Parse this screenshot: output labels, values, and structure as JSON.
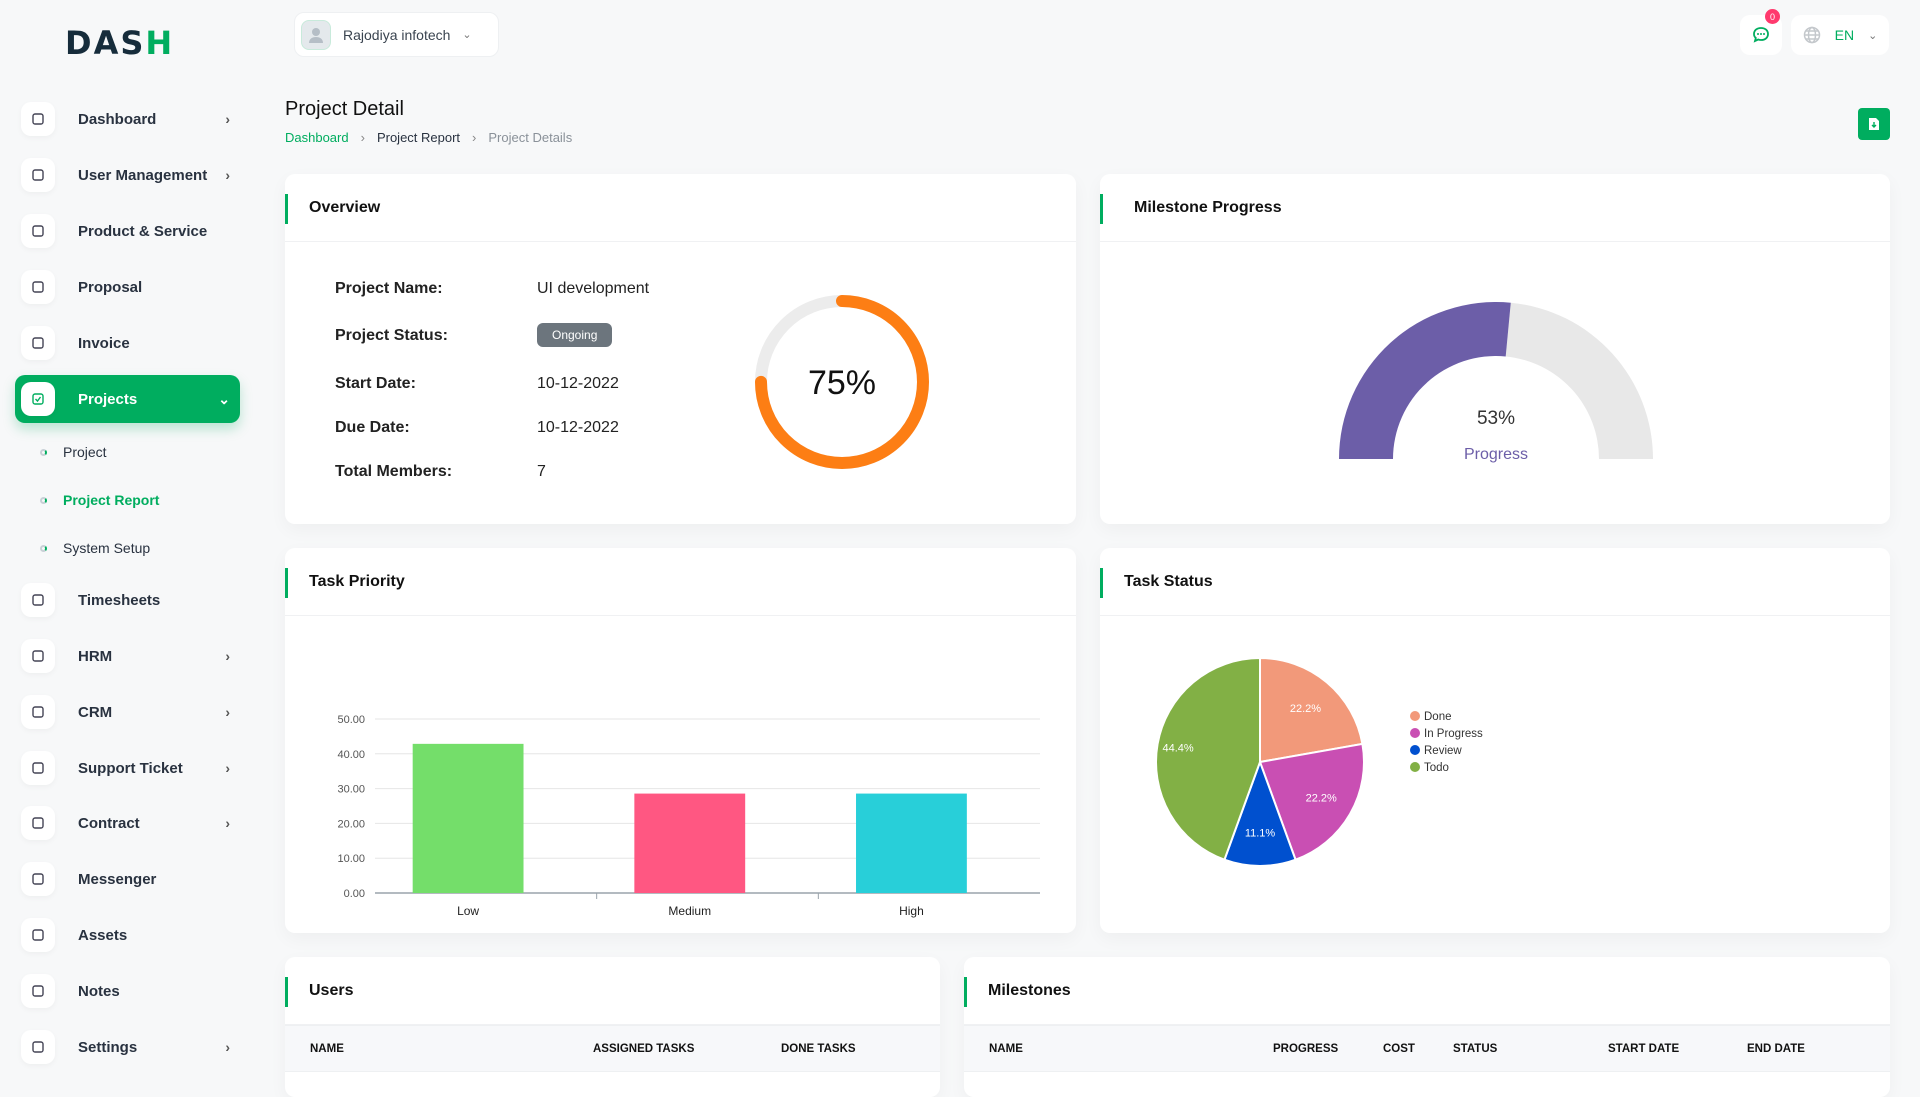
{
  "brand": {
    "logo_text": "DASH",
    "accent": "#00ad5f"
  },
  "header": {
    "company": "Rajodiya infotech",
    "notification_count": "0",
    "language": "EN"
  },
  "sidebar": {
    "items": [
      {
        "label": "Dashboard",
        "icon": "home-icon",
        "chevron": true
      },
      {
        "label": "User Management",
        "icon": "users-icon",
        "chevron": true
      },
      {
        "label": "Product & Service",
        "icon": "cart-icon",
        "chevron": false
      },
      {
        "label": "Proposal",
        "icon": "proposal-icon",
        "chevron": false
      },
      {
        "label": "Invoice",
        "icon": "file-icon",
        "chevron": false
      },
      {
        "label": "Projects",
        "icon": "checkbox-icon",
        "chevron": true,
        "active": true
      },
      {
        "label": "Timesheets",
        "icon": "clock-icon",
        "chevron": false
      },
      {
        "label": "HRM",
        "icon": "hrm-icon",
        "chevron": true
      },
      {
        "label": "CRM",
        "icon": "crm-icon",
        "chevron": true
      },
      {
        "label": "Support Ticket",
        "icon": "headphones-icon",
        "chevron": true
      },
      {
        "label": "Contract",
        "icon": "contract-icon",
        "chevron": true
      },
      {
        "label": "Messenger",
        "icon": "message-icon",
        "chevron": false
      },
      {
        "label": "Assets",
        "icon": "calculator-icon",
        "chevron": false
      },
      {
        "label": "Notes",
        "icon": "calendar-icon",
        "chevron": false
      },
      {
        "label": "Settings",
        "icon": "gear-icon",
        "chevron": true
      }
    ],
    "subitems": [
      {
        "label": "Project"
      },
      {
        "label": "Project Report",
        "active": true
      },
      {
        "label": "System Setup"
      }
    ]
  },
  "page": {
    "title": "Project Detail",
    "breadcrumb": [
      "Dashboard",
      "Project Report",
      "Project Details"
    ]
  },
  "overview": {
    "title": "Overview",
    "fields": [
      {
        "label": "Project Name:",
        "value": "UI development"
      },
      {
        "label": "Project Status:",
        "value": "Ongoing"
      },
      {
        "label": "Start Date:",
        "value": "10-12-2022"
      },
      {
        "label": "Due Date:",
        "value": "10-12-2022"
      },
      {
        "label": "Total Members:",
        "value": "7"
      }
    ],
    "progress": 75,
    "progress_label": "75%",
    "progress_color": "#fd7e14"
  },
  "milestone": {
    "title": "Milestone Progress",
    "progress": 53,
    "value_label": "53%",
    "caption": "Progress",
    "color": "#6c5ea8"
  },
  "chart_data": [
    {
      "title": "Task Priority",
      "type": "bar",
      "categories": [
        "Low",
        "Medium",
        "High"
      ],
      "values": [
        42.86,
        28.57,
        28.57
      ],
      "colors": [
        "#74de6a",
        "#ff5782",
        "#28cfd9"
      ],
      "ylim": [
        0,
        50
      ],
      "yticks": [
        "0.00",
        "10.00",
        "20.00",
        "30.00",
        "40.00",
        "50.00"
      ],
      "grid": true
    },
    {
      "title": "Task Status",
      "type": "pie",
      "categories": [
        "Done",
        "In Progress",
        "Review",
        "Todo"
      ],
      "values": [
        22.2,
        22.2,
        11.1,
        44.4
      ],
      "labels": [
        "22.2%",
        "22.2%",
        "11.1%",
        "44.4%"
      ],
      "colors": [
        "#f2997a",
        "#c94fb3",
        "#0050cf",
        "#82b045"
      ],
      "legend": "right"
    }
  ],
  "users": {
    "title": "Users",
    "columns": [
      "NAME",
      "ASSIGNED TASKS",
      "DONE TASKS"
    ]
  },
  "milestones": {
    "title": "Milestones",
    "columns": [
      "NAME",
      "PROGRESS",
      "COST",
      "STATUS",
      "START DATE",
      "END DATE"
    ]
  }
}
